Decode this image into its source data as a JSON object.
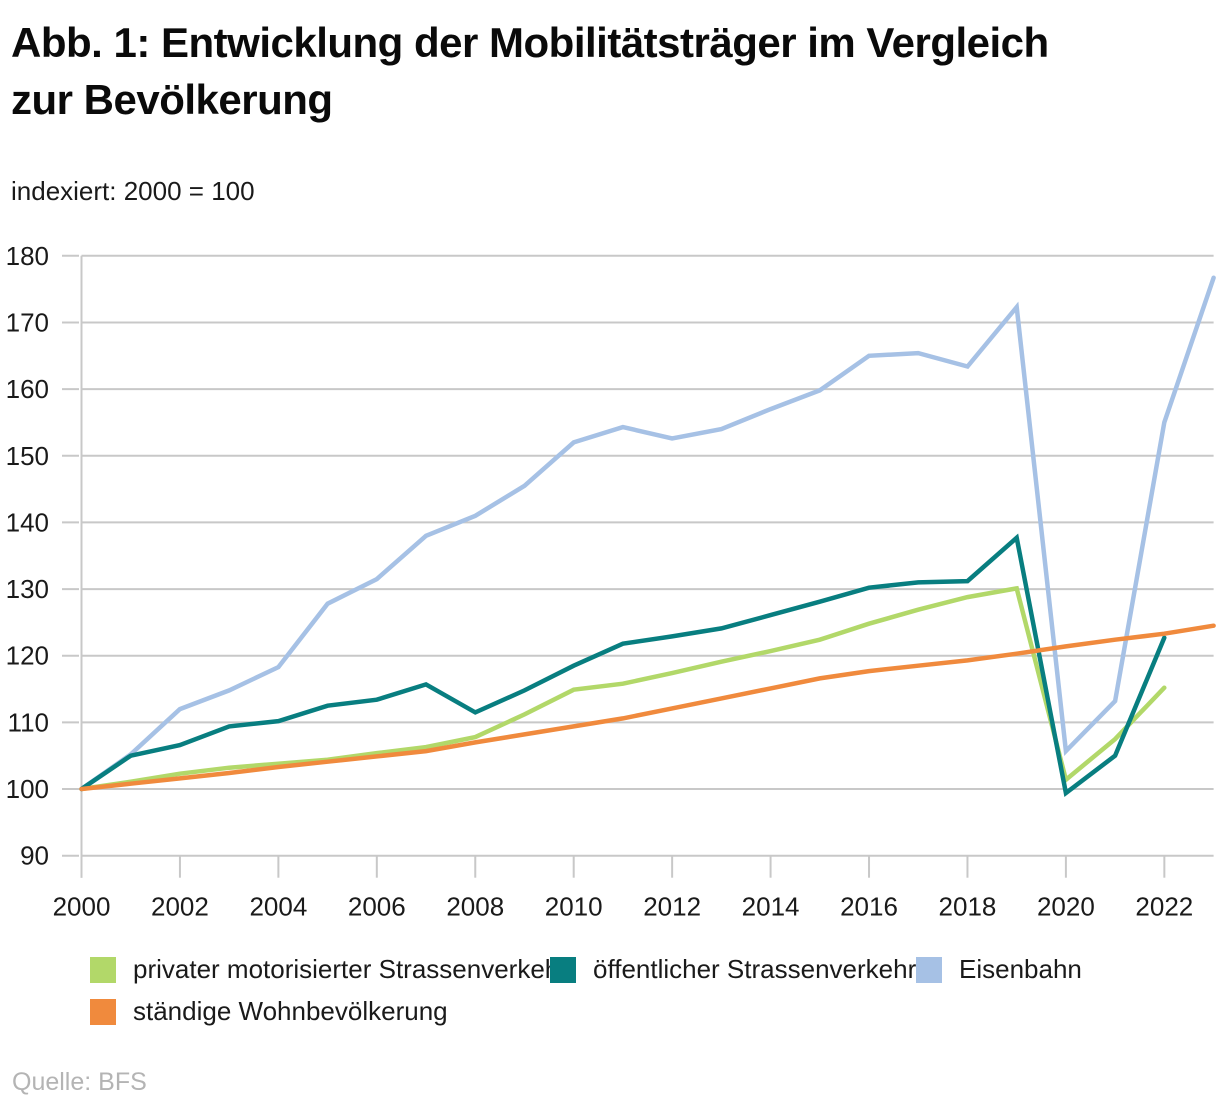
{
  "header": {
    "title": "Abb. 1: Entwicklung der Mobilitätsträger im Vergleich zur Bevölkerung",
    "title_line1": "Abb. 1: Entwicklung der Mobilitätsträger im Vergleich",
    "title_line2": "zur Bevölkerung",
    "subtitle": "indexiert: 2000 = 100"
  },
  "footer": {
    "source": "Quelle: BFS"
  },
  "colors": {
    "grid": "#c8c8c8",
    "axis_text": "#1a1a1a",
    "source_text": "#b4b4b4"
  },
  "legend": {
    "position": "bottom",
    "items": [
      {
        "label": "privater motorisierter Strassenverkehr",
        "color": "#b2d869"
      },
      {
        "label": "öffentlicher Strassenverkehr",
        "color": "#087e80"
      },
      {
        "label": "Eisenbahn",
        "color": "#a6c1e5"
      },
      {
        "label": "ständige Wohnbevölkerung",
        "color": "#f08a3d"
      }
    ]
  },
  "chart_data": {
    "type": "line",
    "title": "Abb. 1: Entwicklung der Mobilitätsträger im Vergleich zur Bevölkerung",
    "subtitle": "indexiert: 2000 = 100",
    "xlabel": "",
    "ylabel": "indexiert: 2000 = 100",
    "x_ticks": [
      2000,
      2002,
      2004,
      2006,
      2008,
      2010,
      2012,
      2014,
      2016,
      2018,
      2020,
      2022
    ],
    "y_ticks": [
      90,
      100,
      110,
      120,
      130,
      140,
      150,
      160,
      170,
      180
    ],
    "xlim": [
      2000,
      2023
    ],
    "ylim": [
      90,
      180
    ],
    "grid": true,
    "legend_position": "bottom",
    "draw_order": [
      0,
      2,
      1,
      3
    ],
    "series": [
      {
        "id": "privater-motorisierter-strassenverkehr",
        "name": "privater motorisierter Strassenverkehr",
        "color": "#b2d869",
        "years": [
          2000,
          2001,
          2002,
          2003,
          2004,
          2005,
          2006,
          2007,
          2008,
          2009,
          2010,
          2011,
          2012,
          2013,
          2014,
          2015,
          2016,
          2017,
          2018,
          2019,
          2020,
          2021,
          2022
        ],
        "values": [
          100,
          101.1,
          102.3,
          103.2,
          103.8,
          104.4,
          105.4,
          106.3,
          107.8,
          111.2,
          114.9,
          115.8,
          117.4,
          119.1,
          120.7,
          122.4,
          124.8,
          126.9,
          128.8,
          130.1,
          101.4,
          107.5,
          115.2
        ]
      },
      {
        "id": "oeffentlicher-strassenverkehr",
        "name": "öffentlicher Strassenverkehr",
        "color": "#087e80",
        "years": [
          2000,
          2001,
          2002,
          2003,
          2004,
          2005,
          2006,
          2007,
          2008,
          2009,
          2010,
          2011,
          2012,
          2013,
          2014,
          2015,
          2016,
          2017,
          2018,
          2019,
          2020,
          2021,
          2022
        ],
        "values": [
          100,
          105,
          106.6,
          109.4,
          110.2,
          112.5,
          113.4,
          115.7,
          111.5,
          114.8,
          118.5,
          121.8,
          122.9,
          124.1,
          126.1,
          128.1,
          130.2,
          131,
          131.2,
          137.7,
          99.4,
          105,
          122.7
        ]
      },
      {
        "id": "eisenbahn",
        "name": "Eisenbahn",
        "color": "#a6c1e5",
        "years": [
          2000,
          2001,
          2002,
          2003,
          2004,
          2005,
          2006,
          2007,
          2008,
          2009,
          2010,
          2011,
          2012,
          2013,
          2014,
          2015,
          2016,
          2017,
          2018,
          2019,
          2020,
          2021,
          2022,
          2023
        ],
        "values": [
          100,
          105.2,
          112,
          114.8,
          118.3,
          127.8,
          131.5,
          138,
          141,
          145.5,
          152,
          154.3,
          152.6,
          154,
          157,
          159.8,
          165,
          165.4,
          163.4,
          172.3,
          105.7,
          113.2,
          155,
          176.7
        ]
      },
      {
        "id": "staendige-wohnbevoelkerung",
        "name": "ständige Wohnbevölkerung",
        "color": "#f08a3d",
        "years": [
          2000,
          2001,
          2002,
          2003,
          2004,
          2005,
          2006,
          2007,
          2008,
          2009,
          2010,
          2011,
          2012,
          2013,
          2014,
          2015,
          2016,
          2017,
          2018,
          2019,
          2020,
          2021,
          2022,
          2023
        ],
        "values": [
          100,
          100.8,
          101.6,
          102.4,
          103.3,
          104.1,
          104.9,
          105.7,
          107,
          108.2,
          109.4,
          110.6,
          112.1,
          113.6,
          115.1,
          116.6,
          117.7,
          118.5,
          119.3,
          120.3,
          121.4,
          122.4,
          123.3,
          124.5
        ]
      }
    ]
  }
}
